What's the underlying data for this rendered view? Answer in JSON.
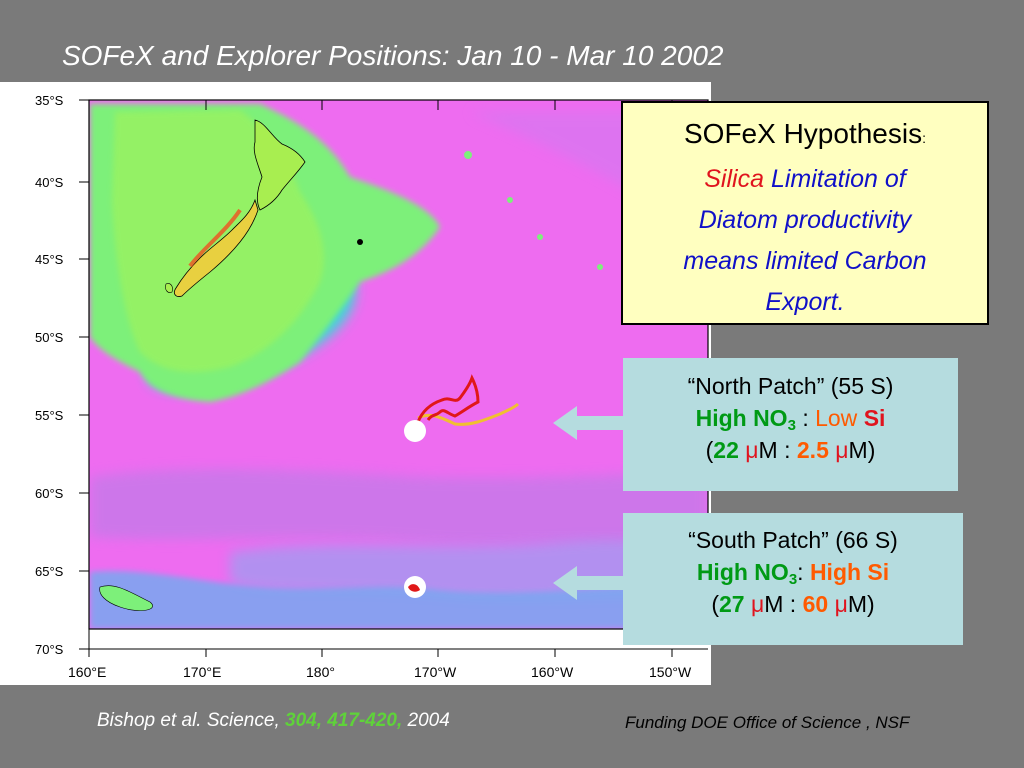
{
  "title": "SOFeX and Explorer Positions: Jan 10 - Mar 10 2002",
  "map": {
    "lat_labels": [
      "35°S",
      "40°S",
      "45°S",
      "50°S",
      "55°S",
      "60°S",
      "65°S",
      "70°S"
    ],
    "lon_labels": [
      "160°E",
      "170°E",
      "180°",
      "170°W",
      "160°W",
      "150°W"
    ],
    "colors": {
      "ocean": "#ee6cf0",
      "deep_ocean": "#c474ee",
      "shelf": "#7df07a",
      "land": "#f0e030",
      "north_track": "#e01818",
      "explorer_track": "#f0c030"
    }
  },
  "hypothesis": {
    "heading": "SOFeX Hypothesis",
    "colon": ":",
    "word_red": "Silica",
    "line1_rest": "Limitation of",
    "line2": "Diatom productivity",
    "line3": "means limited Carbon",
    "line4": "Export."
  },
  "north_patch": {
    "title": "“North Patch” (55 S)",
    "no3_label": "High NO",
    "no3_sub": "3",
    "sep": ":",
    "si_level": "Low",
    "si_label": "Si",
    "open": "(",
    "no3_value": "22",
    "unit_mu": "μ",
    "unit_m": "M",
    "colon": ":",
    "si_value": "2.5",
    "close": ")"
  },
  "south_patch": {
    "title": "“South Patch” (66 S)",
    "no3_label": "High NO",
    "no3_sub": "3",
    "sep": ":",
    "si_text": "High Si",
    "open": "(",
    "no3_value": "27",
    "unit_mu": "μ",
    "unit_m": "M",
    "colon": ":",
    "si_value": "60",
    "close": ")"
  },
  "citation": {
    "authors": "Bishop et al. Science,",
    "volume": "304, 417-420,",
    "year": "2004"
  },
  "funding": "Funding DOE Office of Science , NSF"
}
